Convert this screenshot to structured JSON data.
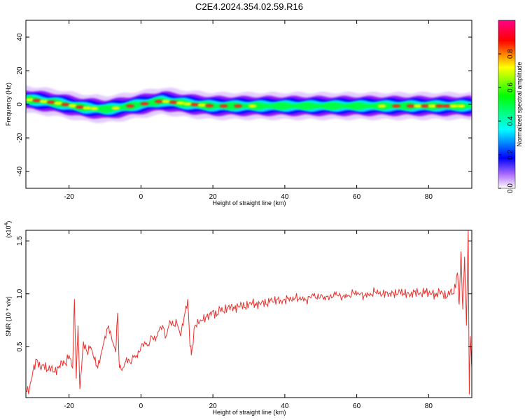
{
  "figure": {
    "title": "C2E4.2024.354.02.59.R16"
  },
  "colors": {
    "snr_line": "#e8322e",
    "background": "#ffffff",
    "axis": "#000000"
  },
  "chart_data": [
    {
      "type": "heatmap",
      "xlabel": "Height of straight line (km)",
      "ylabel": "Frequency (Hz)",
      "xlim": [
        -32,
        92
      ],
      "ylim": [
        -50,
        50
      ],
      "x_ticks": [
        -20,
        0,
        20,
        40,
        60,
        80
      ],
      "y_ticks": [
        -40,
        -20,
        0,
        20,
        40
      ],
      "colorbar": {
        "label": "Normalized spectral amplitude",
        "range": [
          0,
          1
        ],
        "ticks": [
          0.0,
          0.2,
          0.4,
          0.6,
          0.8
        ],
        "colormap": [
          "#ffffff",
          "#9b30ff",
          "#0000ff",
          "#00ffff",
          "#00ff00",
          "#ffff00",
          "#ff0000",
          "#ff00aa"
        ]
      },
      "ridge": {
        "description_points_x": [
          -32,
          -24,
          -16,
          -10,
          -6,
          0,
          6,
          14,
          20,
          30,
          40,
          50,
          60,
          70,
          80,
          88,
          92
        ],
        "center_freq": [
          3,
          1,
          -2,
          -3,
          -2,
          0,
          2,
          0,
          -1,
          -1,
          -1,
          -1,
          -1,
          -1,
          -1,
          -1,
          -1
        ],
        "peak_amplitude": [
          0.85,
          0.9,
          0.8,
          0.6,
          0.75,
          0.7,
          0.9,
          0.85,
          0.75,
          0.7,
          0.55,
          0.55,
          0.6,
          0.7,
          0.9,
          0.85,
          0.5
        ]
      }
    },
    {
      "type": "line",
      "xlabel": "Height of straight line (km)",
      "ylabel": "SNR (10 * v/v)",
      "y_multiplier_label": "(x10",
      "y_multiplier_exp": "4",
      "y_multiplier_close": ")",
      "xlim": [
        -32,
        92
      ],
      "ylim": [
        0.02,
        1.6
      ],
      "x_ticks": [
        -20,
        0,
        20,
        40,
        60,
        80
      ],
      "y_ticks": [
        0.5,
        1.0,
        1.5
      ],
      "series": [
        {
          "values": [
            [
              -32,
              0.08
            ],
            [
              -31,
              0.1
            ],
            [
              -30,
              0.28
            ],
            [
              -29,
              0.38
            ],
            [
              -28,
              0.3
            ],
            [
              -27,
              0.33
            ],
            [
              -26,
              0.28
            ],
            [
              -25,
              0.3
            ],
            [
              -24,
              0.26
            ],
            [
              -23,
              0.3
            ],
            [
              -22,
              0.36
            ],
            [
              -21,
              0.34
            ],
            [
              -20,
              0.42
            ],
            [
              -19,
              0.3
            ],
            [
              -18.5,
              0.95
            ],
            [
              -18,
              0.2
            ],
            [
              -17.5,
              0.7
            ],
            [
              -17,
              0.1
            ],
            [
              -16,
              0.55
            ],
            [
              -15,
              0.45
            ],
            [
              -14,
              0.5
            ],
            [
              -13,
              0.38
            ],
            [
              -12,
              0.3
            ],
            [
              -11,
              0.45
            ],
            [
              -10,
              0.6
            ],
            [
              -9,
              0.7
            ],
            [
              -8,
              0.55
            ],
            [
              -7,
              0.45
            ],
            [
              -6.5,
              0.82
            ],
            [
              -6,
              0.3
            ],
            [
              -5,
              0.3
            ],
            [
              -4,
              0.4
            ],
            [
              -3,
              0.35
            ],
            [
              -2,
              0.4
            ],
            [
              -1,
              0.4
            ],
            [
              0,
              0.5
            ],
            [
              1,
              0.55
            ],
            [
              2,
              0.52
            ],
            [
              3,
              0.6
            ],
            [
              4,
              0.55
            ],
            [
              5,
              0.65
            ],
            [
              6,
              0.7
            ],
            [
              7,
              0.6
            ],
            [
              8,
              0.75
            ],
            [
              9,
              0.7
            ],
            [
              10,
              0.72
            ],
            [
              11,
              0.6
            ],
            [
              12,
              0.78
            ],
            [
              13,
              0.95
            ],
            [
              13.5,
              0.6
            ],
            [
              14,
              0.42
            ],
            [
              15,
              0.7
            ],
            [
              16,
              0.72
            ],
            [
              17,
              0.75
            ],
            [
              18,
              0.78
            ],
            [
              19,
              0.8
            ],
            [
              20,
              0.84
            ],
            [
              21,
              0.79
            ],
            [
              22,
              0.86
            ],
            [
              23,
              0.83
            ],
            [
              24,
              0.87
            ],
            [
              25,
              0.88
            ],
            [
              26,
              0.86
            ],
            [
              27,
              0.88
            ],
            [
              28,
              0.9
            ],
            [
              29,
              0.87
            ],
            [
              30,
              0.9
            ],
            [
              31,
              0.92
            ],
            [
              32,
              0.89
            ],
            [
              33,
              0.91
            ],
            [
              34,
              0.93
            ],
            [
              35,
              0.9
            ],
            [
              36,
              0.94
            ],
            [
              37,
              0.92
            ],
            [
              38,
              0.95
            ],
            [
              39,
              0.93
            ],
            [
              40,
              0.95
            ],
            [
              41,
              0.96
            ],
            [
              42,
              0.93
            ],
            [
              43,
              0.96
            ],
            [
              44,
              0.95
            ],
            [
              45,
              0.97
            ],
            [
              46,
              0.94
            ],
            [
              47,
              0.97
            ],
            [
              48,
              0.98
            ],
            [
              49,
              0.95
            ],
            [
              50,
              0.99
            ],
            [
              51,
              0.97
            ],
            [
              52,
              0.98
            ],
            [
              53,
              0.96
            ],
            [
              54,
              0.99
            ],
            [
              55,
              0.98
            ],
            [
              56,
              0.97
            ],
            [
              57,
              1.0
            ],
            [
              58,
              0.98
            ],
            [
              59,
              1.01
            ],
            [
              60,
              0.99
            ],
            [
              61,
              1.0
            ],
            [
              62,
              0.98
            ],
            [
              63,
              1.01
            ],
            [
              64,
              0.99
            ],
            [
              65,
              1.02
            ],
            [
              66,
              1.0
            ],
            [
              67,
              0.99
            ],
            [
              68,
              1.02
            ],
            [
              69,
              1.0
            ],
            [
              70,
              1.01
            ],
            [
              71,
              0.99
            ],
            [
              72,
              1.02
            ],
            [
              73,
              1.0
            ],
            [
              74,
              1.01
            ],
            [
              75,
              0.99
            ],
            [
              76,
              1.02
            ],
            [
              77,
              1.01
            ],
            [
              78,
              0.99
            ],
            [
              79,
              1.03
            ],
            [
              80,
              1.0
            ],
            [
              81,
              1.01
            ],
            [
              82,
              0.98
            ],
            [
              83,
              1.03
            ],
            [
              84,
              1.0
            ],
            [
              85,
              0.97
            ],
            [
              86,
              1.02
            ],
            [
              87,
              1.0
            ],
            [
              88,
              1.2
            ],
            [
              88.5,
              0.9
            ],
            [
              89,
              1.4
            ],
            [
              89.5,
              0.85
            ],
            [
              90,
              1.35
            ],
            [
              90.5,
              0.7
            ],
            [
              91,
              1.6
            ],
            [
              91.3,
              0.05
            ],
            [
              91.6,
              0.6
            ],
            [
              92,
              0.3
            ]
          ]
        }
      ]
    }
  ]
}
